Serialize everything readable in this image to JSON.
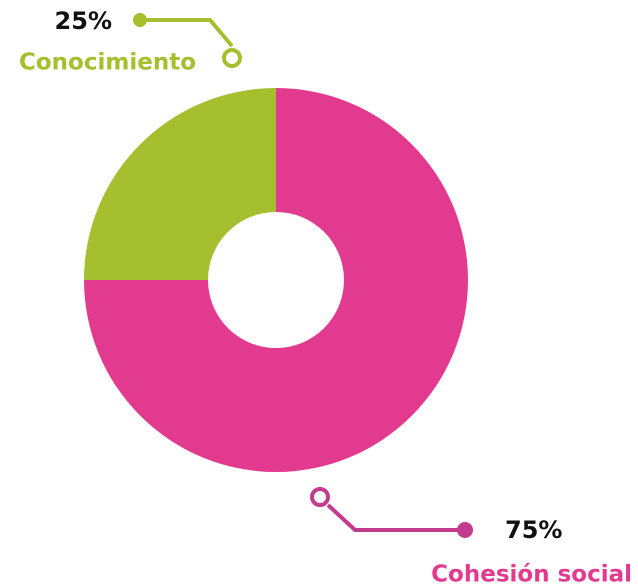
{
  "chart_data": {
    "type": "pie",
    "categories": [
      "Cohesión social",
      "Conocimiento"
    ],
    "values": [
      75,
      25
    ],
    "value_labels": [
      "75%",
      "25%"
    ],
    "colors": [
      "#e23a8f",
      "#a5bf2f"
    ]
  }
}
